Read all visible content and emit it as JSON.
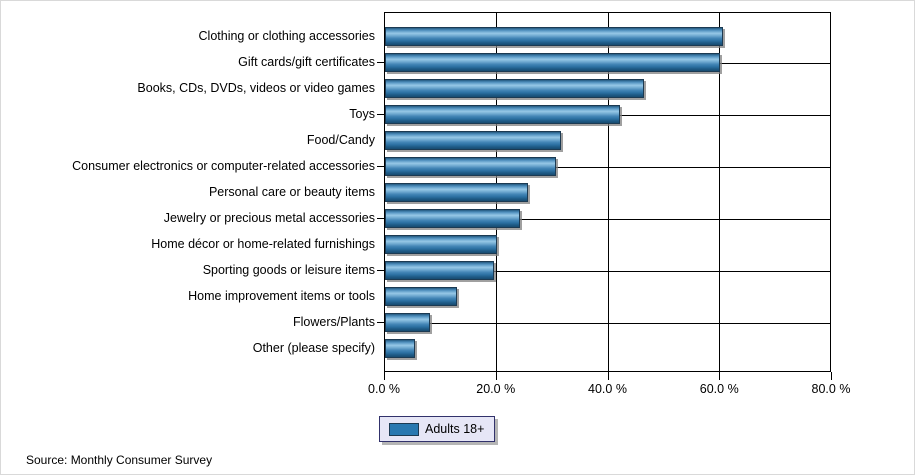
{
  "chart_data": {
    "type": "bar",
    "orientation": "horizontal",
    "title": "",
    "xlabel": "",
    "ylabel": "",
    "xlim": [
      0,
      80
    ],
    "grid": true,
    "legend_position": "bottom-left",
    "categories": [
      "Clothing or clothing accessories",
      "Gift cards/gift certificates",
      "Books, CDs, DVDs, videos or video games",
      "Toys",
      "Food/Candy",
      "Consumer electronics or computer-related accessories",
      "Personal care or beauty items",
      "Jewelry or precious metal accessories",
      "Home décor or home-related furnishings",
      "Sporting goods or leisure items",
      "Home improvement items or tools",
      "Flowers/Plants",
      "Other (please specify)"
    ],
    "series": [
      {
        "name": "Adults 18+",
        "values": [
          60.8,
          60.2,
          46.6,
          42.3,
          31.7,
          30.8,
          25.7,
          24.2,
          20.1,
          19.6,
          12.9,
          8.0,
          5.4
        ]
      }
    ],
    "x_tick_values": [
      0,
      20,
      40,
      60,
      80
    ],
    "x_tick_labels": [
      "0.0 %",
      "20.0 %",
      "40.0 %",
      "60.0 %",
      "80.0 %"
    ]
  },
  "legend": {
    "label": "Adults 18+",
    "swatch_color": "#2878b0"
  },
  "footer": {
    "source": "Source: Monthly Consumer Survey"
  },
  "colors": {
    "bar_fill": "#2e7cb0",
    "bar_highlight": "#96c8e6",
    "bar_border": "#1c3a52",
    "legend_bg": "#e6e6f6",
    "legend_border": "#31316b",
    "gridline": "#000000"
  }
}
